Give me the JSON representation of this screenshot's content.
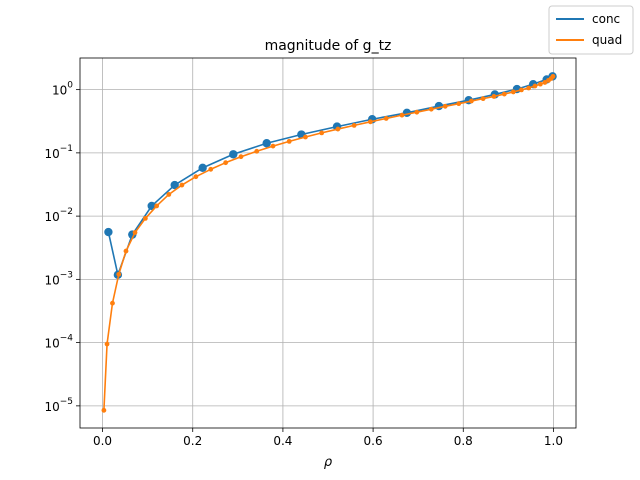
{
  "chart_data": {
    "type": "line",
    "title": "magnitude of g_tz",
    "xlabel": "ρ",
    "ylabel": "",
    "xlim": [
      -0.05,
      1.05
    ],
    "ylim_log10": [
      -5.35,
      0.5
    ],
    "yscale": "log",
    "grid": true,
    "legend_placement": "top-right outside",
    "x_ticks": [
      {
        "value": 0.0,
        "label": "0.0"
      },
      {
        "value": 0.2,
        "label": "0.2"
      },
      {
        "value": 0.4,
        "label": "0.4"
      },
      {
        "value": 0.6,
        "label": "0.6"
      },
      {
        "value": 0.8,
        "label": "0.8"
      },
      {
        "value": 1.0,
        "label": "1.0"
      }
    ],
    "y_ticks": [
      {
        "exp": -5,
        "label": "10^-5",
        "base": "10",
        "power": "−5"
      },
      {
        "exp": -4,
        "label": "10^-4",
        "base": "10",
        "power": "−4"
      },
      {
        "exp": -3,
        "label": "10^-3",
        "base": "10",
        "power": "−3"
      },
      {
        "exp": -2,
        "label": "10^-2",
        "base": "10",
        "power": "−2"
      },
      {
        "exp": -1,
        "label": "10^-1",
        "base": "10",
        "power": "−1"
      },
      {
        "exp": 0,
        "label": "10^0",
        "base": "10",
        "power": "0"
      }
    ],
    "series": [
      {
        "name": "conc",
        "color": "#1f77b4",
        "marker_size": "large",
        "x": [
          0.013,
          0.034,
          0.066,
          0.109,
          0.16,
          0.222,
          0.29,
          0.364,
          0.441,
          0.52,
          0.598,
          0.675,
          0.746,
          0.812,
          0.87,
          0.919,
          0.955,
          0.985,
          0.998
        ],
        "y": [
          0.0056,
          0.00118,
          0.0051,
          0.0145,
          0.031,
          0.058,
          0.095,
          0.142,
          0.195,
          0.26,
          0.34,
          0.43,
          0.55,
          0.68,
          0.84,
          1.02,
          1.22,
          1.45,
          1.62
        ]
      },
      {
        "name": "quad",
        "color": "#ff7f0e",
        "marker_size": "small",
        "x": [
          0.003,
          0.01,
          0.022,
          0.036,
          0.052,
          0.072,
          0.095,
          0.12,
          0.147,
          0.176,
          0.207,
          0.24,
          0.273,
          0.307,
          0.342,
          0.378,
          0.414,
          0.45,
          0.486,
          0.522,
          0.558,
          0.594,
          0.629,
          0.664,
          0.697,
          0.729,
          0.76,
          0.79,
          0.818,
          0.844,
          0.868,
          0.891,
          0.911,
          0.929,
          0.945,
          0.959,
          0.971,
          0.981,
          0.989,
          0.995,
          0.999
        ],
        "y": [
          8.5e-06,
          9.5e-05,
          0.00042,
          0.0012,
          0.0028,
          0.0055,
          0.0092,
          0.0145,
          0.022,
          0.031,
          0.042,
          0.055,
          0.07,
          0.087,
          0.106,
          0.128,
          0.152,
          0.178,
          0.207,
          0.238,
          0.272,
          0.31,
          0.35,
          0.395,
          0.44,
          0.49,
          0.545,
          0.6,
          0.66,
          0.72,
          0.78,
          0.85,
          0.92,
          0.99,
          1.06,
          1.14,
          1.22,
          1.3,
          1.4,
          1.5,
          1.62
        ]
      }
    ]
  }
}
